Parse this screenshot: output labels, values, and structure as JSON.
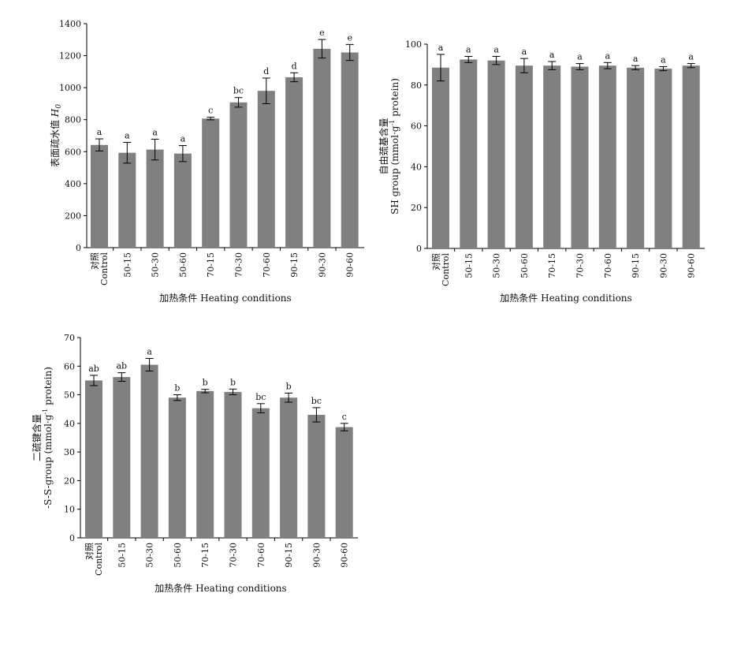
{
  "chart_data": [
    {
      "type": "bar",
      "categories": [
        "对照\nControl",
        "50-15",
        "50-30",
        "50-60",
        "70-15",
        "70-30",
        "70-60",
        "90-15",
        "90-30",
        "90-60"
      ],
      "values": [
        642,
        593,
        613,
        588,
        807,
        908,
        980,
        1065,
        1243,
        1220
      ],
      "errors": [
        38,
        65,
        65,
        50,
        8,
        30,
        80,
        28,
        58,
        50
      ],
      "significance": [
        "a",
        "a",
        "a",
        "a",
        "c",
        "bc",
        "d",
        "d",
        "e",
        "e"
      ],
      "ylabel": "表面疏水值 H0",
      "xlabel": "加热条件 Heating conditions",
      "ylim": [
        0,
        1400
      ],
      "yticks": [
        0,
        200,
        400,
        600,
        800,
        1000,
        1200,
        1400
      ],
      "bar_color": "#808080",
      "grid": false
    },
    {
      "type": "bar",
      "categories": [
        "对照\nControl",
        "50-15",
        "50-30",
        "50-60",
        "70-15",
        "70-30",
        "70-60",
        "90-15",
        "90-30",
        "90-60"
      ],
      "values": [
        88.5,
        92.5,
        92.0,
        89.5,
        89.5,
        89.0,
        89.5,
        88.5,
        88.0,
        89.5
      ],
      "errors": [
        6.5,
        1.5,
        2.0,
        3.5,
        2.0,
        1.5,
        1.5,
        1.0,
        1.0,
        1.0
      ],
      "significance": [
        "a",
        "a",
        "a",
        "a",
        "a",
        "a",
        "a",
        "a",
        "a",
        "a"
      ],
      "ylabel": "自由巯基含量\nSH group (mmol·g-1 protein)",
      "xlabel": "加热条件 Heating conditions",
      "ylim": [
        0,
        100
      ],
      "yticks": [
        0,
        20,
        40,
        60,
        80,
        100
      ],
      "bar_color": "#808080",
      "grid": false
    },
    {
      "type": "bar",
      "categories": [
        "对照\nControl",
        "50-15",
        "50-30",
        "50-60",
        "70-15",
        "70-30",
        "70-60",
        "90-15",
        "90-30",
        "90-60"
      ],
      "values": [
        55.0,
        56.2,
        60.5,
        49.0,
        51.3,
        51.0,
        45.3,
        49.0,
        43.0,
        38.7
      ],
      "errors": [
        1.8,
        1.5,
        2.2,
        1.0,
        0.6,
        1.0,
        1.6,
        1.6,
        2.5,
        1.3
      ],
      "significance": [
        "ab",
        "ab",
        "a",
        "b",
        "b",
        "b",
        "bc",
        "b",
        "bc",
        "c"
      ],
      "ylabel": "二硫键含量\n-S-S-group (mmol·g-1 protein)",
      "xlabel": "加热条件 Heating conditions",
      "ylim": [
        0,
        70
      ],
      "yticks": [
        0,
        10,
        20,
        30,
        40,
        50,
        60,
        70
      ],
      "bar_color": "#808080",
      "grid": false
    }
  ]
}
